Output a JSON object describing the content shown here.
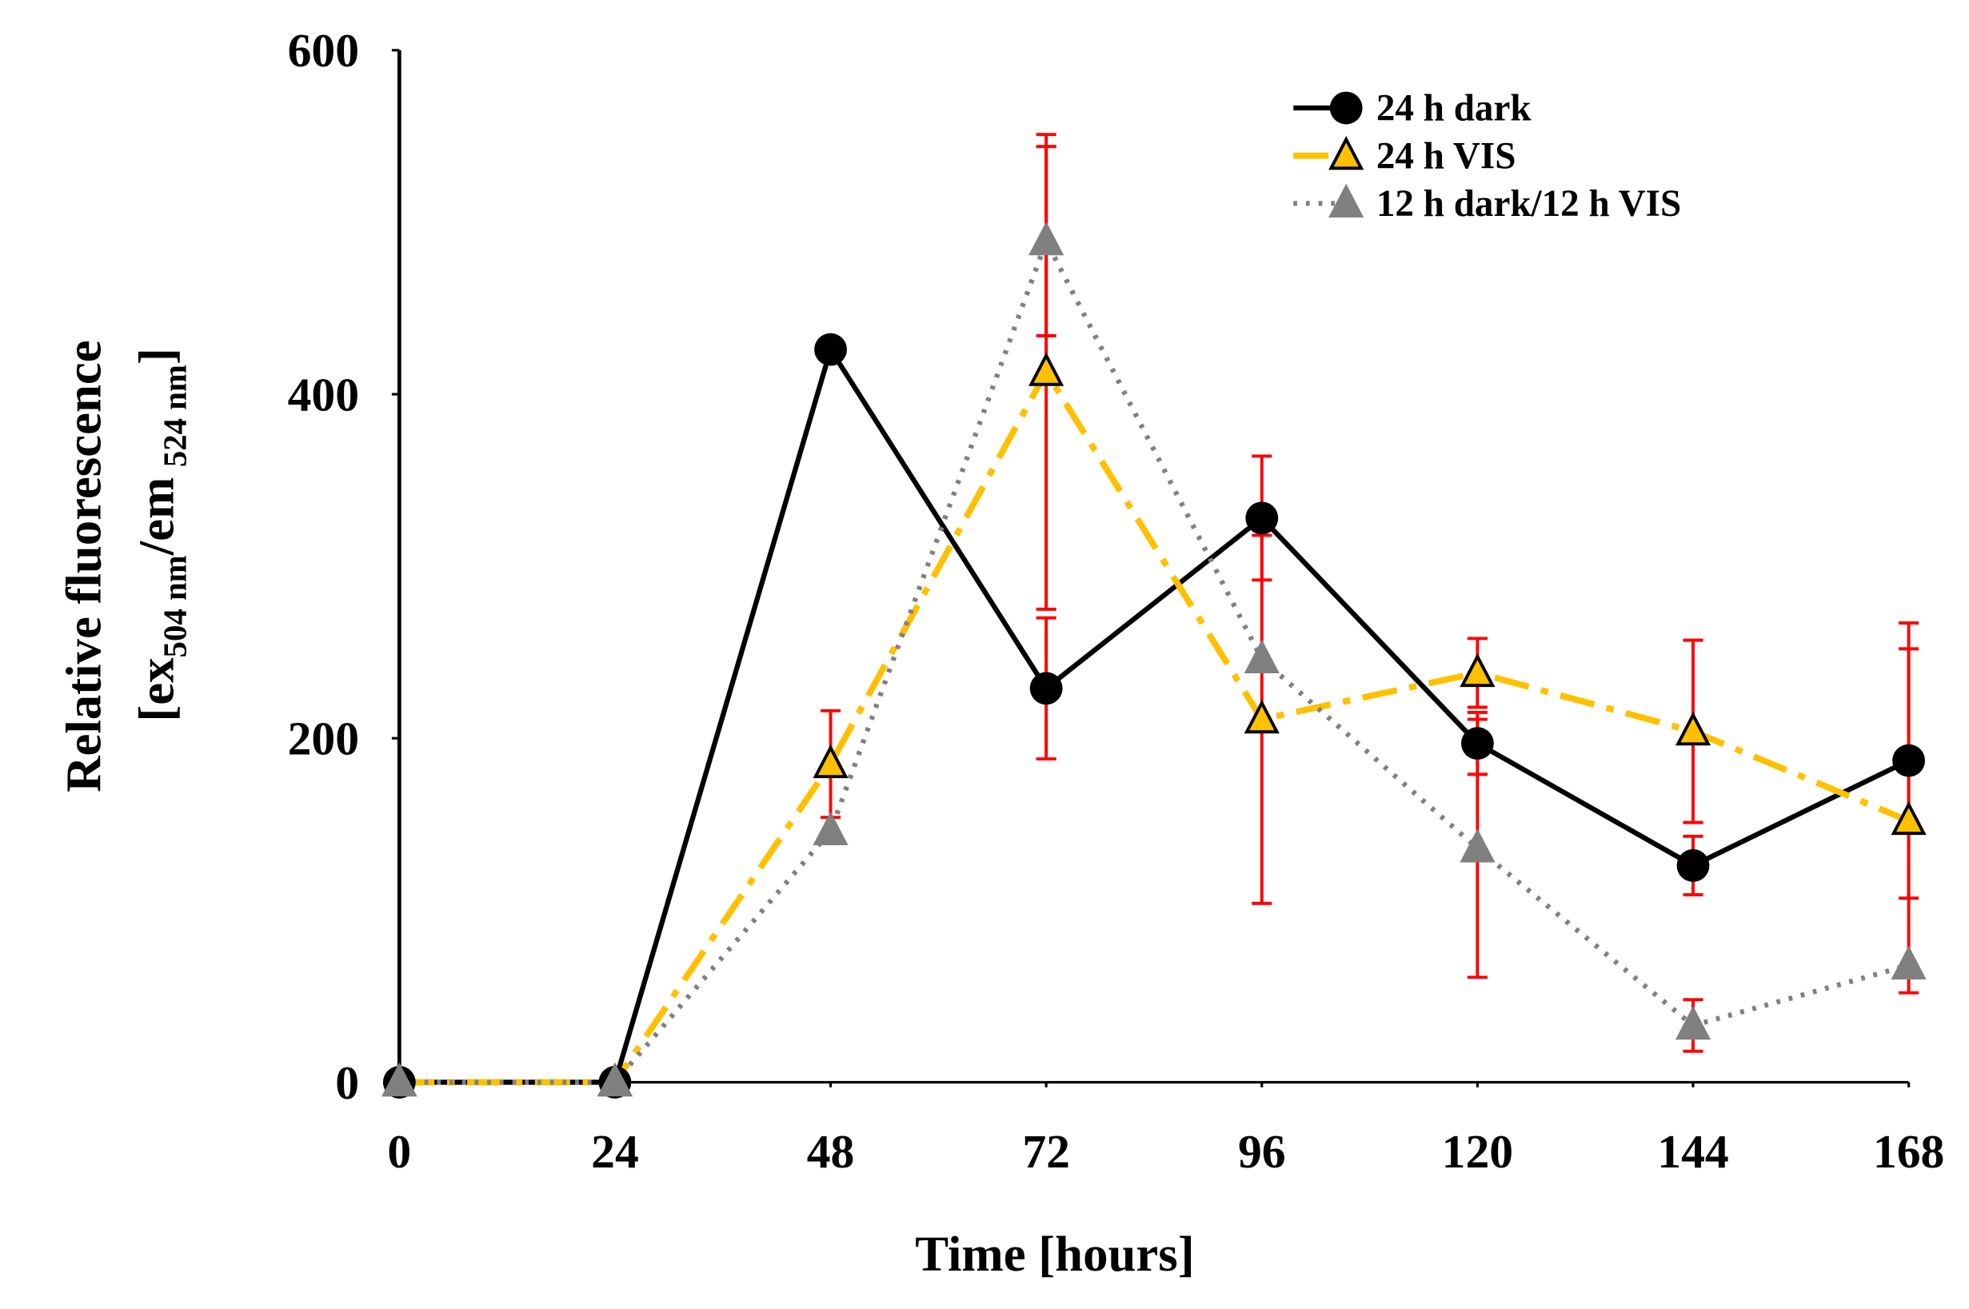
{
  "chart_data": {
    "type": "line",
    "x_label": "Time [hours]",
    "y_label": "Relative fluorescence",
    "y_label_2": [
      "[ex",
      "504 nm",
      "/em",
      "524 nm",
      "]"
    ],
    "x": [
      0,
      24,
      48,
      72,
      96,
      120,
      144,
      168
    ],
    "xlim": [
      0,
      168
    ],
    "xticks": [
      0,
      24,
      48,
      72,
      96,
      120,
      144,
      168
    ],
    "ylim": [
      0,
      600
    ],
    "yticks": [
      0,
      200,
      400,
      600
    ],
    "error_color": "#ff0000",
    "series": [
      {
        "name": "24 h dark",
        "color": "#000000",
        "line_style": "solid",
        "marker": "circle",
        "values": [
          0,
          0,
          426,
          229,
          328,
          197,
          126,
          187
        ],
        "errors": [
          null,
          null,
          null,
          41,
          36,
          18,
          17,
          80
        ]
      },
      {
        "name": "24 h VIS",
        "color": "#ffc000",
        "line_style": "dashdot",
        "marker": "triangle",
        "values": [
          0,
          0,
          185,
          413,
          211,
          238,
          204,
          152
        ],
        "errors": [
          null,
          null,
          31,
          138,
          107,
          20,
          53,
          100
        ]
      },
      {
        "name": "12 h dark/12 h VIS",
        "color": "#808080",
        "line_style": "dotted",
        "marker": "triangle",
        "values": [
          0,
          0,
          146,
          489,
          246,
          136,
          33,
          68
        ],
        "errors": [
          null,
          null,
          null,
          55,
          null,
          75,
          15,
          null
        ]
      }
    ]
  }
}
